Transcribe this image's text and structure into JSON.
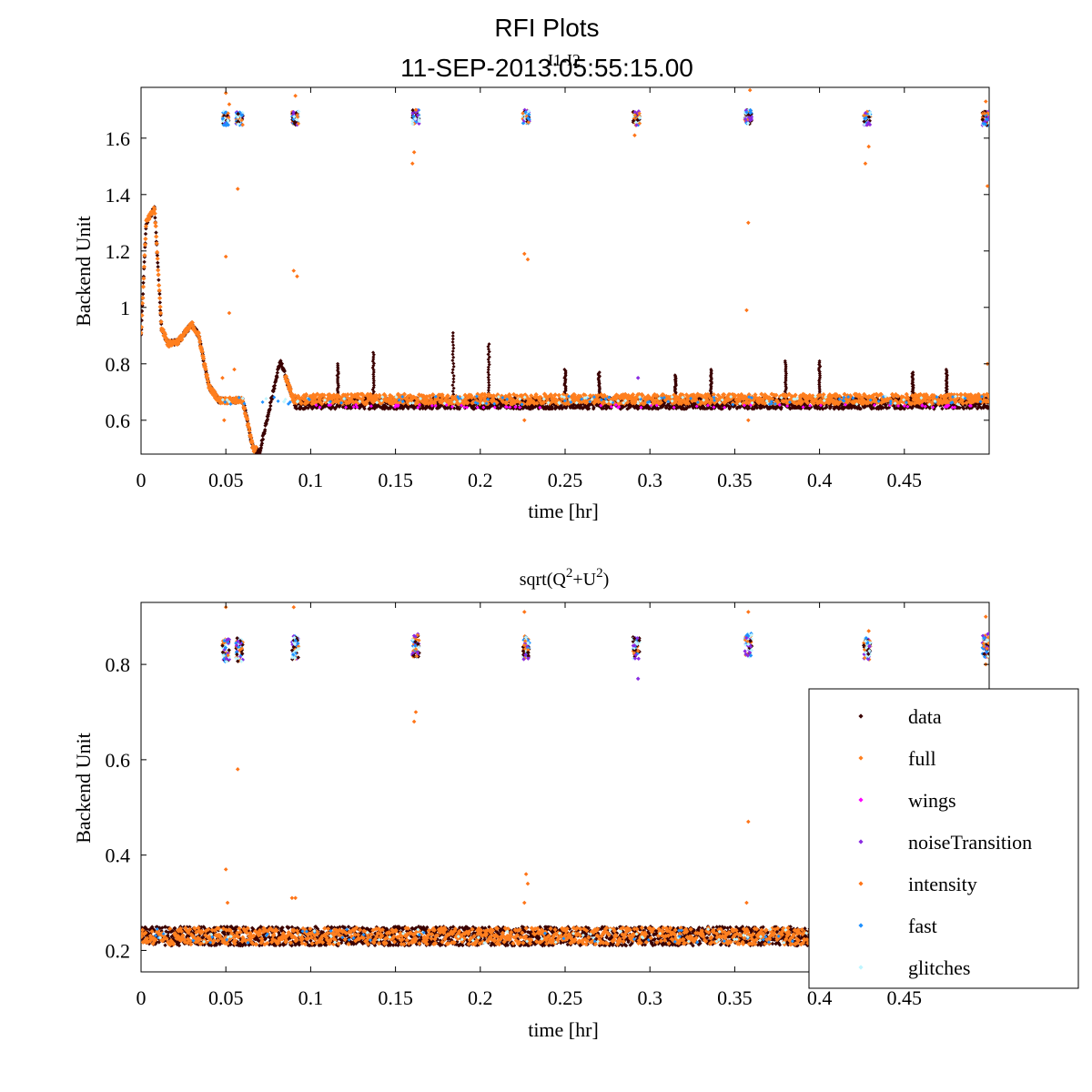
{
  "title_line1": "RFI Plots",
  "title_line2": "11-SEP-2013:05:55:15.00",
  "colors": {
    "data": "#3a0000",
    "full": "#ff7f1f",
    "wings": "#ff00ff",
    "noiseTransition": "#8a2be2",
    "intensity": "#ff7518",
    "fast": "#1e90ff",
    "glitches": "#bff5ff"
  },
  "chart_data": [
    {
      "type": "scatter",
      "title": "I1-I2",
      "xlabel": "time [hr]",
      "ylabel": "Backend Unit",
      "xlim": [
        0,
        0.5
      ],
      "ylim": [
        0.48,
        1.78
      ],
      "xticks": [
        "0",
        "0.05",
        "0.1",
        "0.15",
        "0.2",
        "0.25",
        "0.3",
        "0.35",
        "0.4",
        "0.45"
      ],
      "xtick_values": [
        0,
        0.05,
        0.1,
        0.15,
        0.2,
        0.25,
        0.3,
        0.35,
        0.4,
        0.45
      ],
      "yticks": [
        "0.6",
        "0.8",
        "1",
        "1.2",
        "1.4",
        "1.6"
      ],
      "ytick_values": [
        0.6,
        0.8,
        1.0,
        1.2,
        1.4,
        1.6
      ],
      "baseline": 0.67,
      "trend": [
        {
          "x": 0.0,
          "y": 0.9
        },
        {
          "x": 0.003,
          "y": 1.3
        },
        {
          "x": 0.008,
          "y": 1.35
        },
        {
          "x": 0.012,
          "y": 0.93
        },
        {
          "x": 0.016,
          "y": 0.87
        },
        {
          "x": 0.022,
          "y": 0.88
        },
        {
          "x": 0.03,
          "y": 0.94
        },
        {
          "x": 0.034,
          "y": 0.9
        },
        {
          "x": 0.04,
          "y": 0.72
        },
        {
          "x": 0.046,
          "y": 0.67
        },
        {
          "x": 0.06,
          "y": 0.67
        },
        {
          "x": 0.066,
          "y": 0.5
        },
        {
          "x": 0.07,
          "y": 0.49
        },
        {
          "x": 0.082,
          "y": 0.81
        },
        {
          "x": 0.09,
          "y": 0.67
        },
        {
          "x": 0.5,
          "y": 0.67
        }
      ],
      "spikes": [
        {
          "x": 0.116,
          "y": 0.8
        },
        {
          "x": 0.137,
          "y": 0.84
        },
        {
          "x": 0.184,
          "y": 0.91
        },
        {
          "x": 0.205,
          "y": 0.87
        },
        {
          "x": 0.25,
          "y": 0.78
        },
        {
          "x": 0.27,
          "y": 0.77
        },
        {
          "x": 0.315,
          "y": 0.76
        },
        {
          "x": 0.336,
          "y": 0.78
        },
        {
          "x": 0.38,
          "y": 0.81
        },
        {
          "x": 0.4,
          "y": 0.81
        },
        {
          "x": 0.455,
          "y": 0.77
        },
        {
          "x": 0.475,
          "y": 0.78
        }
      ],
      "glitch_clusters": [
        {
          "x": 0.05,
          "y": 1.67
        },
        {
          "x": 0.058,
          "y": 1.67
        },
        {
          "x": 0.091,
          "y": 1.67
        },
        {
          "x": 0.162,
          "y": 1.675
        },
        {
          "x": 0.227,
          "y": 1.675
        },
        {
          "x": 0.292,
          "y": 1.67
        },
        {
          "x": 0.358,
          "y": 1.675
        },
        {
          "x": 0.428,
          "y": 1.67
        },
        {
          "x": 0.498,
          "y": 1.67
        }
      ],
      "outliers": [
        {
          "x": 0.05,
          "y": 1.76
        },
        {
          "x": 0.052,
          "y": 1.72
        },
        {
          "x": 0.057,
          "y": 1.42
        },
        {
          "x": 0.05,
          "y": 1.18
        },
        {
          "x": 0.052,
          "y": 0.98
        },
        {
          "x": 0.049,
          "y": 0.6
        },
        {
          "x": 0.091,
          "y": 1.75
        },
        {
          "x": 0.09,
          "y": 1.13
        },
        {
          "x": 0.092,
          "y": 1.11
        },
        {
          "x": 0.161,
          "y": 1.55
        },
        {
          "x": 0.16,
          "y": 1.51
        },
        {
          "x": 0.162,
          "y": 1.7
        },
        {
          "x": 0.226,
          "y": 1.19
        },
        {
          "x": 0.228,
          "y": 1.17
        },
        {
          "x": 0.226,
          "y": 0.6
        },
        {
          "x": 0.291,
          "y": 1.61
        },
        {
          "x": 0.293,
          "y": 0.75
        },
        {
          "x": 0.359,
          "y": 1.77
        },
        {
          "x": 0.358,
          "y": 1.3
        },
        {
          "x": 0.357,
          "y": 0.99
        },
        {
          "x": 0.358,
          "y": 0.6
        },
        {
          "x": 0.427,
          "y": 1.51
        },
        {
          "x": 0.429,
          "y": 1.57
        },
        {
          "x": 0.498,
          "y": 1.73
        },
        {
          "x": 0.499,
          "y": 1.43
        },
        {
          "x": 0.499,
          "y": 0.8
        },
        {
          "x": 0.048,
          "y": 0.75
        },
        {
          "x": 0.055,
          "y": 0.78
        }
      ]
    },
    {
      "type": "scatter",
      "title_base1": "sqrt(Q",
      "title_sup1": "2",
      "title_base2": "+U",
      "title_sup2": "2",
      "title_end": ")",
      "xlabel": "time [hr]",
      "ylabel": "Backend Unit",
      "xlim": [
        0,
        0.5
      ],
      "ylim": [
        0.155,
        0.93
      ],
      "xticks": [
        "0",
        "0.05",
        "0.1",
        "0.15",
        "0.2",
        "0.25",
        "0.3",
        "0.35",
        "0.4",
        "0.45"
      ],
      "xtick_values": [
        0,
        0.05,
        0.1,
        0.15,
        0.2,
        0.25,
        0.3,
        0.35,
        0.4,
        0.45
      ],
      "yticks": [
        "0.2",
        "0.4",
        "0.6",
        "0.8"
      ],
      "ytick_values": [
        0.2,
        0.4,
        0.6,
        0.8
      ],
      "baseline": 0.23,
      "glitch_clusters": [
        {
          "x": 0.05,
          "y": 0.83
        },
        {
          "x": 0.058,
          "y": 0.83
        },
        {
          "x": 0.091,
          "y": 0.835
        },
        {
          "x": 0.162,
          "y": 0.84
        },
        {
          "x": 0.227,
          "y": 0.835
        },
        {
          "x": 0.292,
          "y": 0.835
        },
        {
          "x": 0.358,
          "y": 0.84
        },
        {
          "x": 0.428,
          "y": 0.835
        },
        {
          "x": 0.498,
          "y": 0.84
        }
      ],
      "outliers": [
        {
          "x": 0.05,
          "y": 0.92
        },
        {
          "x": 0.057,
          "y": 0.58
        },
        {
          "x": 0.05,
          "y": 0.37
        },
        {
          "x": 0.051,
          "y": 0.3
        },
        {
          "x": 0.09,
          "y": 0.92
        },
        {
          "x": 0.089,
          "y": 0.31
        },
        {
          "x": 0.091,
          "y": 0.31
        },
        {
          "x": 0.162,
          "y": 0.7
        },
        {
          "x": 0.161,
          "y": 0.68
        },
        {
          "x": 0.226,
          "y": 0.91
        },
        {
          "x": 0.227,
          "y": 0.36
        },
        {
          "x": 0.228,
          "y": 0.34
        },
        {
          "x": 0.226,
          "y": 0.3
        },
        {
          "x": 0.293,
          "y": 0.77
        },
        {
          "x": 0.358,
          "y": 0.91
        },
        {
          "x": 0.358,
          "y": 0.47
        },
        {
          "x": 0.357,
          "y": 0.3
        },
        {
          "x": 0.429,
          "y": 0.87
        },
        {
          "x": 0.498,
          "y": 0.9
        },
        {
          "x": 0.498,
          "y": 0.8
        }
      ],
      "legend": {
        "placement": "right",
        "entries": [
          "data",
          "full",
          "wings",
          "noiseTransition",
          "intensity",
          "fast",
          "glitches"
        ]
      }
    }
  ]
}
